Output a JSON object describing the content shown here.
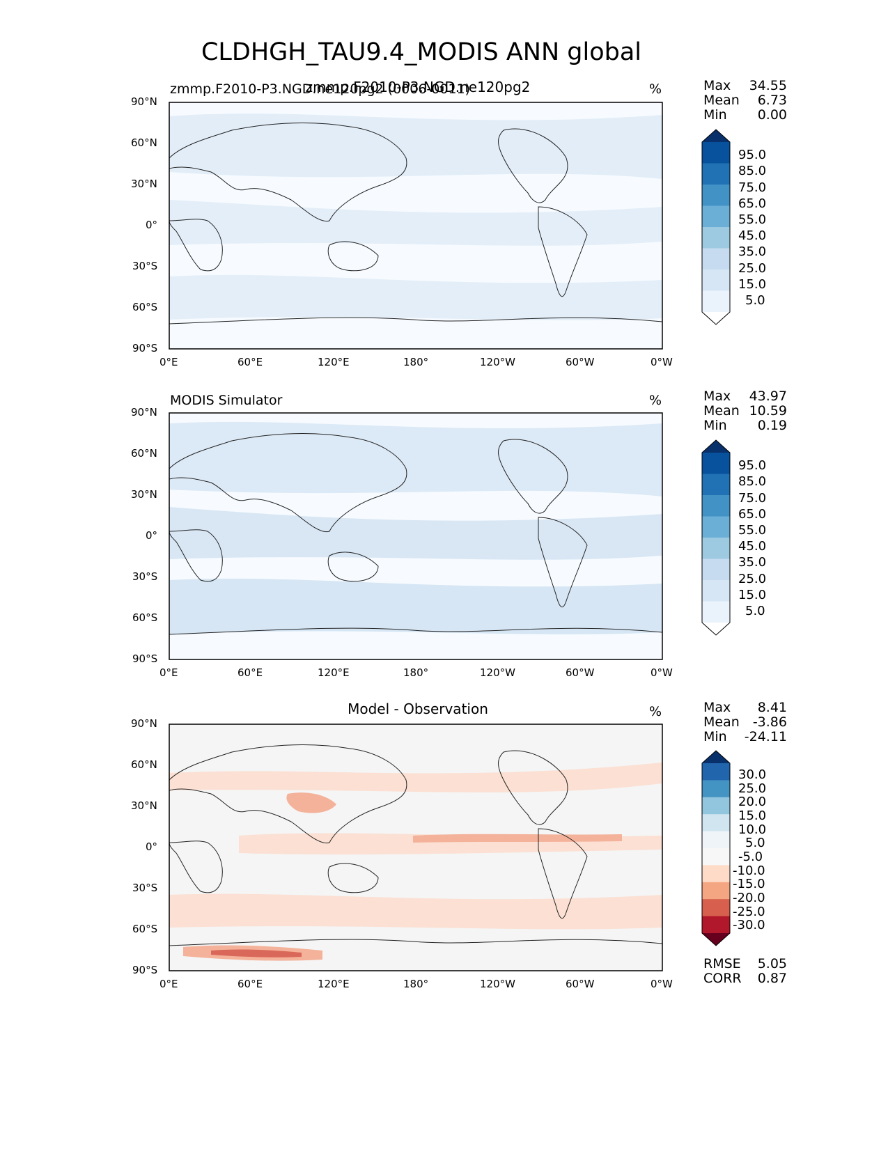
{
  "figure": {
    "title": "CLDHGH_TAU9.4_MODIS ANN global"
  },
  "axes": {
    "lat_ticks": [
      "90°N",
      "60°N",
      "30°N",
      "0°",
      "30°S",
      "60°S",
      "90°S"
    ],
    "lon_ticks": [
      "0°E",
      "60°E",
      "120°E",
      "180°",
      "120°W",
      "60°W",
      "0°W"
    ]
  },
  "panels": [
    {
      "left_label": "zmmp.F2010-P3.NGD.ne120pg2 (0006-0011)",
      "center_label": "zmmp.F2010-P3.NGD.ne120pg2",
      "units": "%",
      "stats": [
        {
          "name": "Max",
          "value": "34.55"
        },
        {
          "name": "Mean",
          "value": "6.73"
        },
        {
          "name": "Min",
          "value": "0.00"
        }
      ],
      "colorbar": {
        "labels": [
          "95.0",
          "85.0",
          "75.0",
          "65.0",
          "55.0",
          "45.0",
          "35.0",
          "25.0",
          "15.0",
          "5.0"
        ],
        "colors": [
          "#08306b",
          "#08519c",
          "#2171b5",
          "#4292c6",
          "#6baed6",
          "#9ecae1",
          "#c6dbef",
          "#d6e6f4",
          "#eaf2fb",
          "#ffffff"
        ]
      }
    },
    {
      "left_label": "MODIS Simulator",
      "center_label": "",
      "units": "%",
      "stats": [
        {
          "name": "Max",
          "value": "43.97"
        },
        {
          "name": "Mean",
          "value": "10.59"
        },
        {
          "name": "Min",
          "value": "0.19"
        }
      ],
      "colorbar": {
        "labels": [
          "95.0",
          "85.0",
          "75.0",
          "65.0",
          "55.0",
          "45.0",
          "35.0",
          "25.0",
          "15.0",
          "5.0"
        ],
        "colors": [
          "#08306b",
          "#08519c",
          "#2171b5",
          "#4292c6",
          "#6baed6",
          "#9ecae1",
          "#c6dbef",
          "#d6e6f4",
          "#eaf2fb",
          "#ffffff"
        ]
      }
    },
    {
      "left_label": "",
      "center_label": "Model - Observation",
      "units": "%",
      "stats": [
        {
          "name": "Max",
          "value": "8.41"
        },
        {
          "name": "Mean",
          "value": "-3.86"
        },
        {
          "name": "Min",
          "value": "-24.11"
        }
      ],
      "bottom_stats": [
        {
          "name": "RMSE",
          "value": "5.05"
        },
        {
          "name": "CORR",
          "value": "0.87"
        }
      ],
      "colorbar": {
        "labels": [
          "30.0",
          "25.0",
          "20.0",
          "15.0",
          "10.0",
          "5.0",
          "-5.0",
          "-10.0",
          "-15.0",
          "-20.0",
          "-25.0",
          "-30.0"
        ],
        "colors": [
          "#08306b",
          "#2166ac",
          "#4393c3",
          "#92c5de",
          "#d1e5f0",
          "#eef4f8",
          "#f7f7f7",
          "#fddbc7",
          "#f4a582",
          "#d6604d",
          "#b2182b",
          "#67001f"
        ]
      }
    }
  ],
  "map_fill": {
    "ocean_a": "#f7fbff",
    "ocean_b": "#e4eef8",
    "diff_bg": "#f5f5f5",
    "diff_neg": "#fbe0d3",
    "diff_neg2": "#f4b29a",
    "diff_neg3": "#d9685a"
  }
}
